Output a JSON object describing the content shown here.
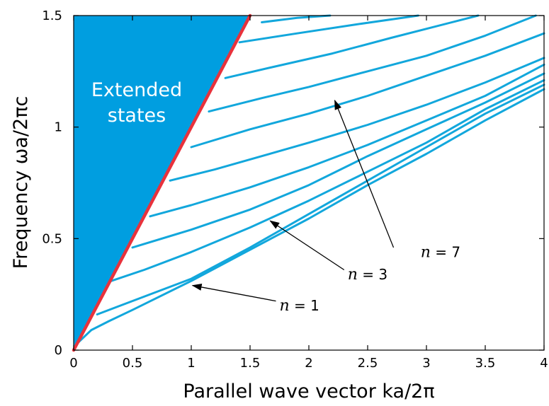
{
  "chart_data": {
    "type": "line",
    "title": "",
    "xlabel": "Parallel wave vector  ka/2π",
    "ylabel": "Frequency  ωa/2πc",
    "xlim": [
      0,
      4
    ],
    "ylim": [
      0,
      1.5
    ],
    "xticks": [
      0,
      0.5,
      1,
      1.5,
      2,
      2.5,
      3,
      3.5,
      4
    ],
    "xtick_labels": [
      "0",
      "0.5",
      "1",
      "1.5",
      "2",
      "2.5",
      "3",
      "3.5",
      "4"
    ],
    "yticks": [
      0,
      0.5,
      1,
      1.5
    ],
    "ytick_labels": [
      "0",
      "0.5",
      "1",
      "1.5"
    ],
    "grid": false,
    "colors": {
      "light_line": "#e8323c",
      "bands": "#12a7dc",
      "extended_region": "#009ee0",
      "arrow": "#000000"
    },
    "region": {
      "label_line1": "Extended",
      "label_line2": "states",
      "polygon": [
        [
          0,
          0
        ],
        [
          1.5,
          1.5
        ],
        [
          0,
          1.5
        ]
      ]
    },
    "light_line": {
      "x": [
        0,
        1.5
      ],
      "y": [
        0,
        1.5
      ]
    },
    "bands": [
      {
        "x": [
          0.03,
          0.15,
          0.3,
          0.5,
          1.0,
          1.5,
          2.0,
          2.5,
          3.0,
          3.5,
          4.0
        ],
        "y": [
          0.03,
          0.09,
          0.13,
          0.18,
          0.31,
          0.45,
          0.59,
          0.74,
          0.88,
          1.03,
          1.17
        ]
      },
      {
        "x": [
          0.2,
          0.4,
          0.7,
          1.0,
          1.5,
          2.0,
          2.5,
          3.0,
          3.5,
          4.0
        ],
        "y": [
          0.16,
          0.2,
          0.26,
          0.32,
          0.46,
          0.61,
          0.76,
          0.91,
          1.06,
          1.19
        ]
      },
      {
        "x": [
          0.32,
          0.6,
          1.0,
          1.5,
          2.0,
          2.5,
          3.0,
          3.5,
          4.0
        ],
        "y": [
          0.31,
          0.36,
          0.44,
          0.55,
          0.67,
          0.8,
          0.93,
          1.08,
          1.21
        ]
      },
      {
        "x": [
          0.5,
          1.0,
          1.5,
          2.0,
          2.5,
          3.0,
          3.5,
          4.0
        ],
        "y": [
          0.46,
          0.54,
          0.63,
          0.74,
          0.87,
          0.99,
          1.11,
          1.24
        ]
      },
      {
        "x": [
          0.65,
          1.0,
          1.5,
          2.0,
          2.5,
          3.0,
          3.5,
          4.0
        ],
        "y": [
          0.6,
          0.65,
          0.73,
          0.82,
          0.92,
          1.03,
          1.14,
          1.28
        ]
      },
      {
        "x": [
          0.82,
          1.2,
          1.6,
          2.0,
          2.5,
          3.0,
          3.5,
          4.0
        ],
        "y": [
          0.76,
          0.81,
          0.87,
          0.93,
          1.01,
          1.1,
          1.2,
          1.31
        ]
      },
      {
        "x": [
          1.0,
          1.5,
          2.0,
          2.5,
          3.0,
          3.5,
          4.0
        ],
        "y": [
          0.91,
          0.99,
          1.06,
          1.14,
          1.23,
          1.32,
          1.42
        ]
      },
      {
        "x": [
          1.15,
          1.6,
          2.0,
          2.5,
          3.0,
          3.5,
          3.93
        ],
        "y": [
          1.07,
          1.13,
          1.18,
          1.25,
          1.32,
          1.41,
          1.5
        ]
      },
      {
        "x": [
          1.29,
          1.7,
          2.2,
          2.7,
          3.44
        ],
        "y": [
          1.22,
          1.27,
          1.33,
          1.4,
          1.5
        ]
      },
      {
        "x": [
          1.41,
          1.9,
          2.4,
          2.93
        ],
        "y": [
          1.38,
          1.42,
          1.46,
          1.5
        ]
      },
      {
        "x": [
          1.6,
          1.9,
          2.18
        ],
        "y": [
          1.47,
          1.49,
          1.5
        ]
      }
    ],
    "annotations": [
      {
        "n_symbol": "n",
        "value_text": " = 1",
        "text_at": [
          1.75,
          0.2
        ],
        "arrow_from": [
          1.72,
          0.22
        ],
        "arrow_to": [
          1.01,
          0.29
        ]
      },
      {
        "n_symbol": "n",
        "value_text": " = 3",
        "text_at": [
          2.33,
          0.34
        ],
        "arrow_from": [
          2.3,
          0.36
        ],
        "arrow_to": [
          1.67,
          0.58
        ]
      },
      {
        "n_symbol": "n",
        "value_text": " = 7",
        "text_at": [
          2.95,
          0.44
        ],
        "arrow_from": [
          2.72,
          0.46
        ],
        "arrow_to": [
          2.22,
          1.12
        ]
      }
    ]
  }
}
